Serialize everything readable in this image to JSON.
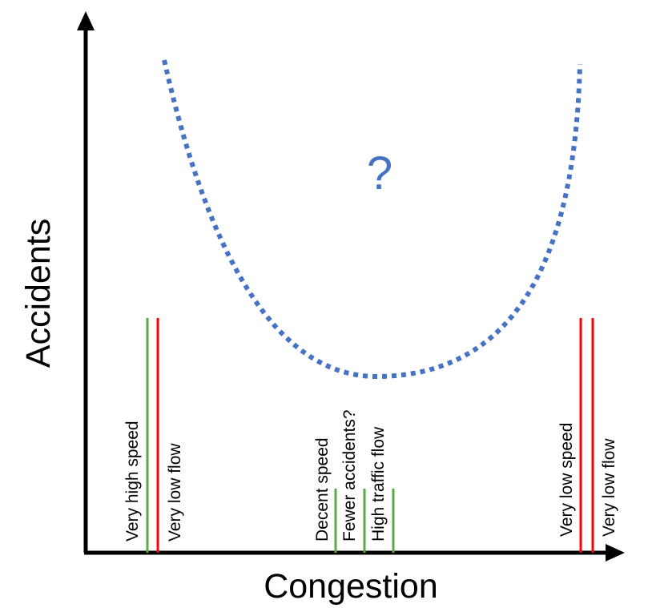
{
  "diagram": {
    "x_axis_label": "Congestion",
    "y_axis_label": "Accidents",
    "curve_annotation": "?",
    "colors": {
      "axis": "#000000",
      "curve": "#4472c4",
      "speed_line": "#5aaa46",
      "flow_line": "#ff0000",
      "text": "#000000"
    },
    "markers": {
      "left": {
        "speed_label": "Very high speed",
        "flow_label": "Very low flow"
      },
      "middle": {
        "speed_label": "Decent speed",
        "accidents_label": "Fewer accidents?",
        "flow_label": "High traffic flow"
      },
      "right": {
        "speed_label": "Very low speed",
        "flow_label": "Very low flow"
      }
    }
  }
}
